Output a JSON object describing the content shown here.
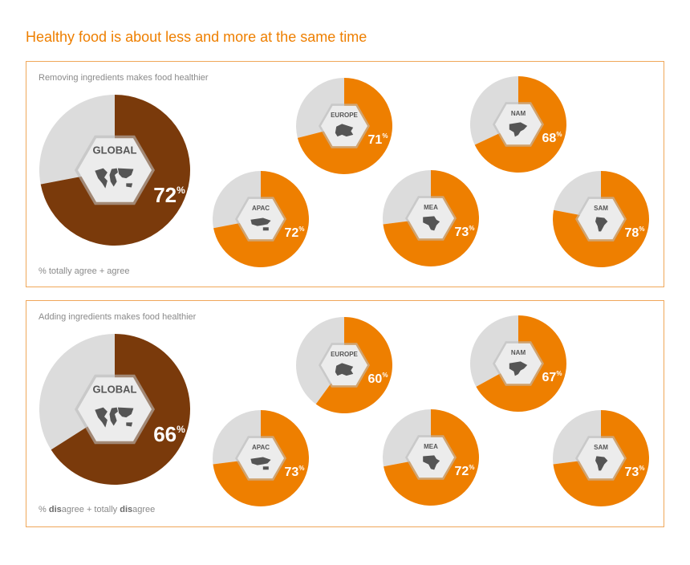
{
  "title": "Healthy food is about less and more at the same time",
  "colors": {
    "accent": "#ee7f00",
    "global": "#7a3a0b",
    "rest": "#dcdcdc",
    "hex": "#ececec",
    "map": "#555555"
  },
  "chart_data": [
    {
      "type": "pie",
      "title": "Removing ingredients makes food healthier",
      "footnote": "% totally agree + agree",
      "unit": "%",
      "regions": [
        {
          "name": "GLOBAL",
          "value": 72
        },
        {
          "name": "EUROPE",
          "value": 71
        },
        {
          "name": "NAM",
          "value": 68
        },
        {
          "name": "APAC",
          "value": 72
        },
        {
          "name": "MEA",
          "value": 73
        },
        {
          "name": "SAM",
          "value": 78
        }
      ]
    },
    {
      "type": "pie",
      "title": "Adding ingredients makes food healthier",
      "footnote_parts": [
        "% ",
        "dis",
        "agree + totally ",
        "dis",
        "agree"
      ],
      "unit": "%",
      "regions": [
        {
          "name": "GLOBAL",
          "value": 66
        },
        {
          "name": "EUROPE",
          "value": 60
        },
        {
          "name": "NAM",
          "value": 67
        },
        {
          "name": "APAC",
          "value": 73
        },
        {
          "name": "MEA",
          "value": 72
        },
        {
          "name": "SAM",
          "value": 73
        }
      ]
    }
  ]
}
